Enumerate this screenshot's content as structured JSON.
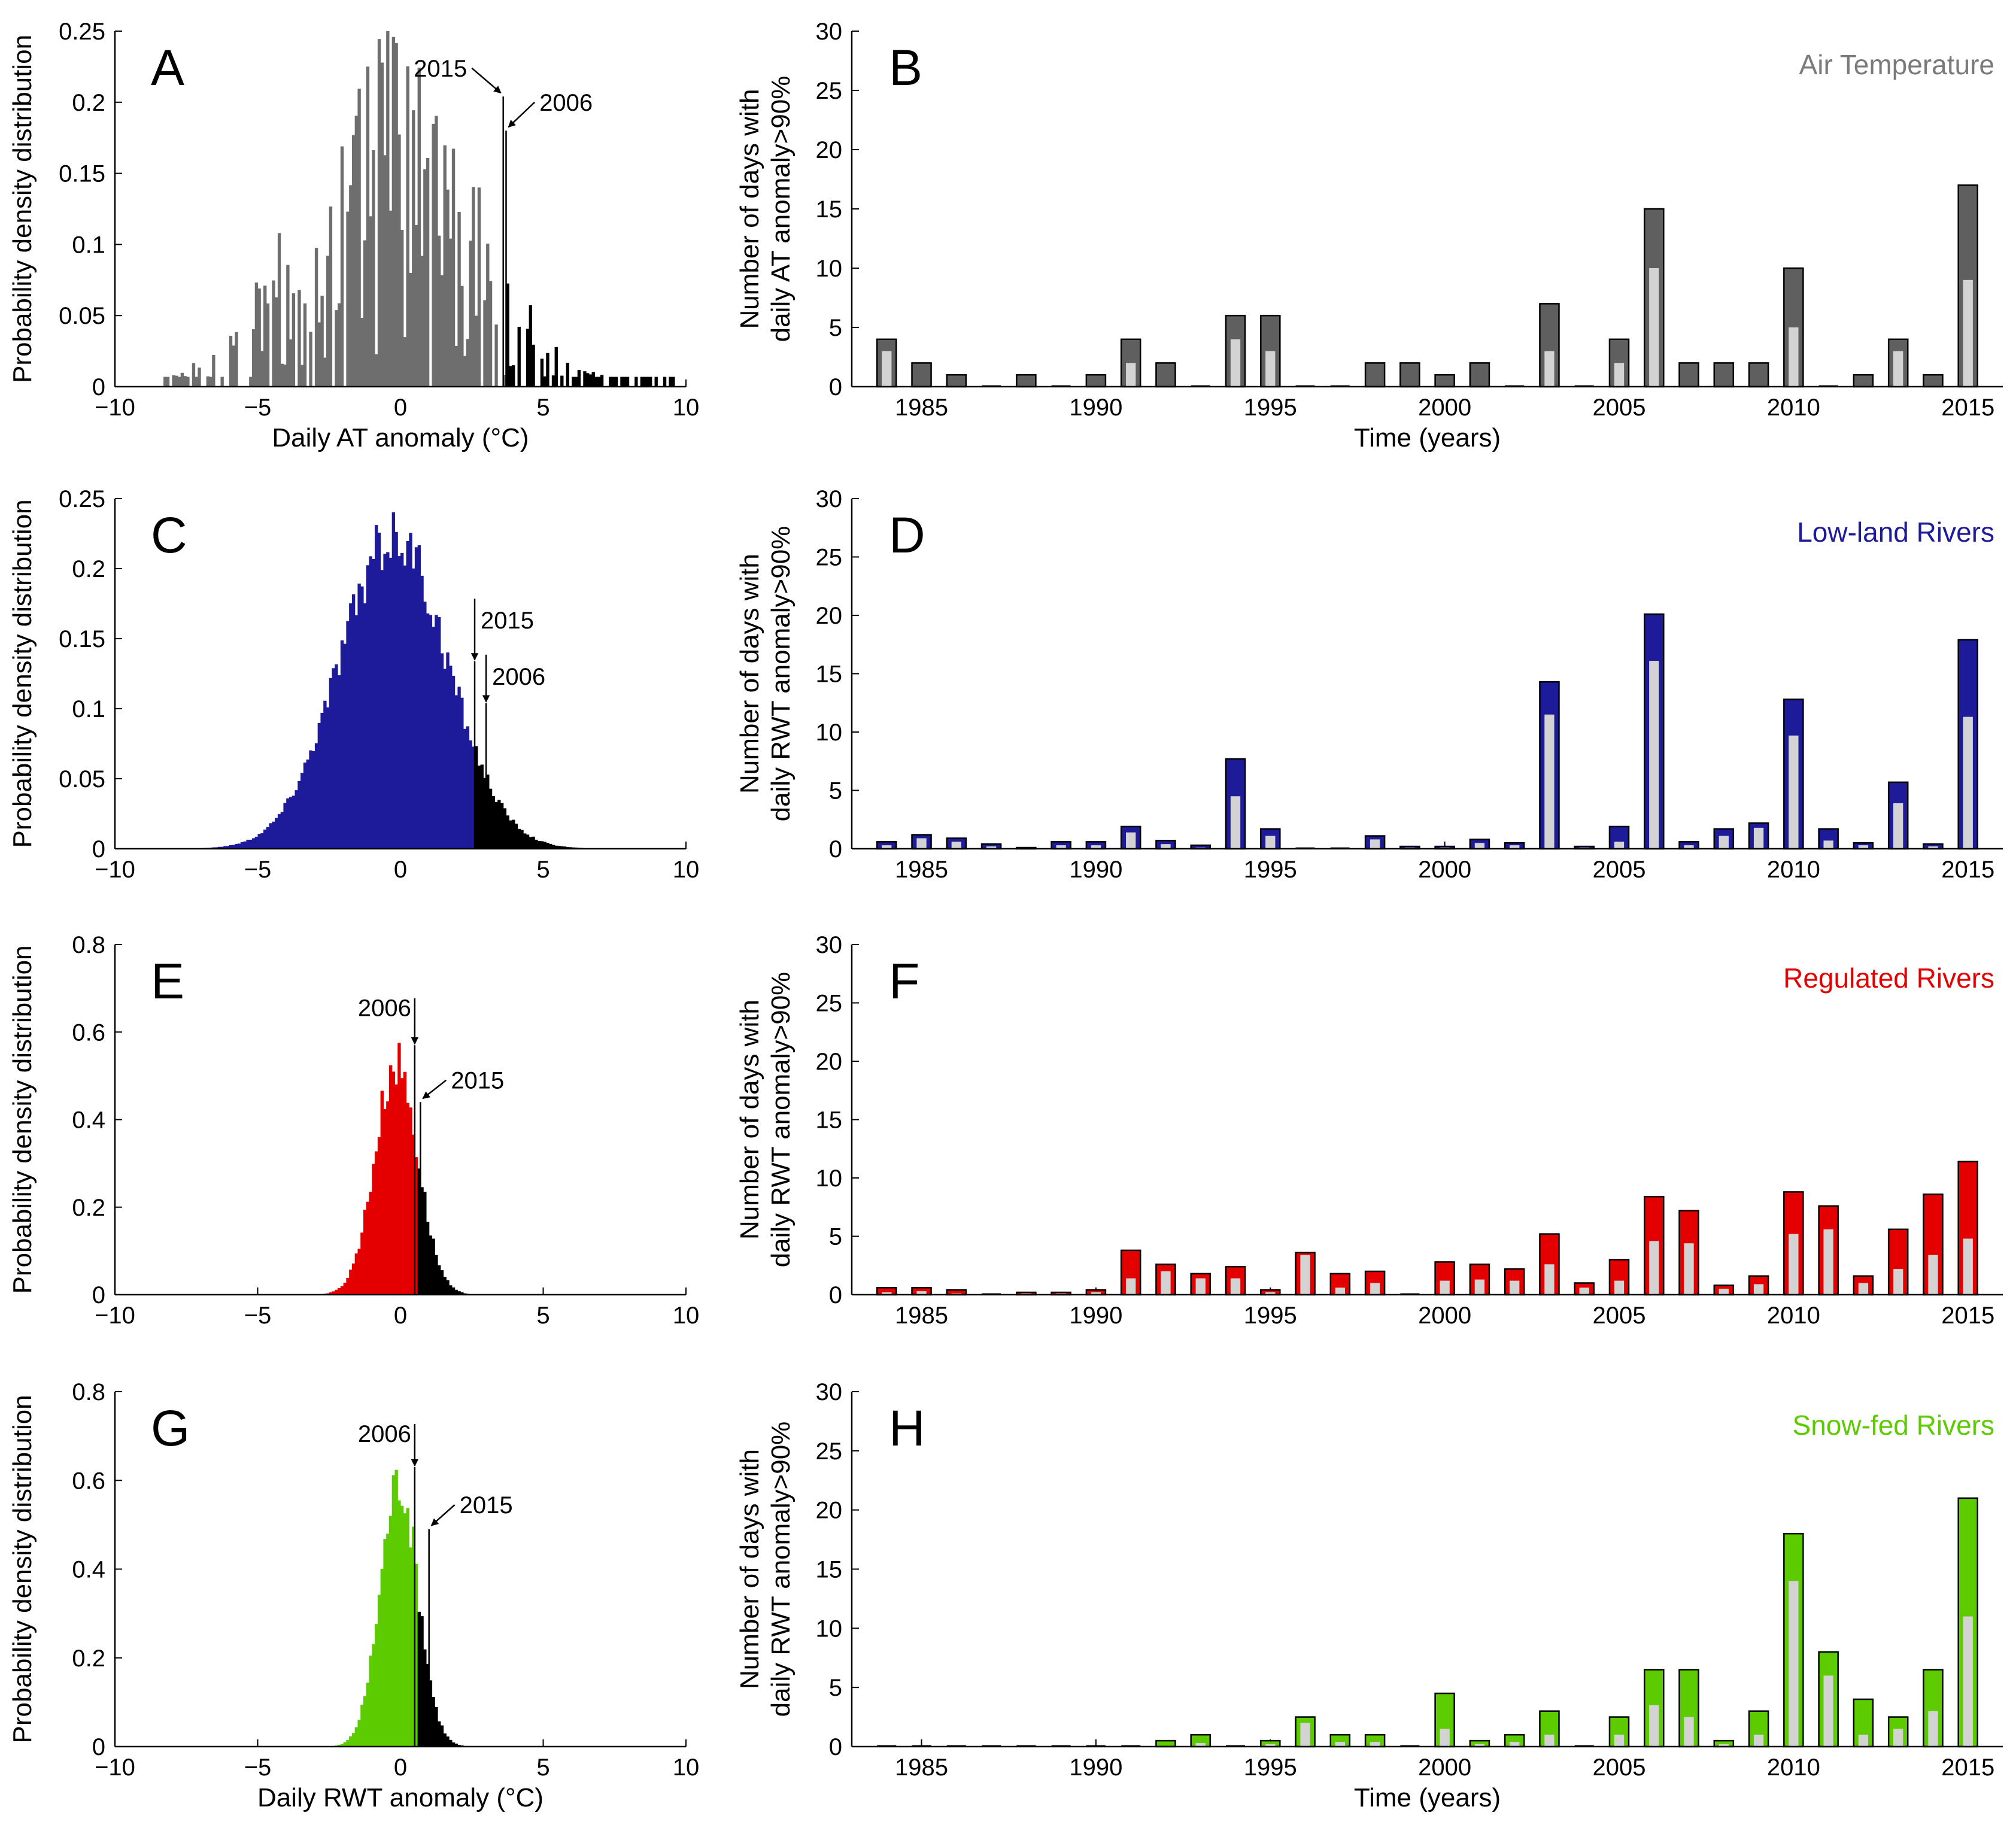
{
  "chart_data": [
    {
      "panel": "A",
      "type": "histogram",
      "xlabel": "Daily AT anomaly (°C)",
      "ylabel": "Probability density distribution",
      "xlim": [
        -10,
        10
      ],
      "ylim": [
        0,
        0.25
      ],
      "xticks": [
        "−10",
        "−5",
        "0",
        "5",
        "10"
      ],
      "yticks": [
        "0",
        "0.05",
        "0.1",
        "0.15",
        "0.2",
        "0.25"
      ],
      "color": "#6e6e6e",
      "tail_color": "#000000",
      "threshold": 3.6,
      "distribution": {
        "mean": -0.5,
        "sd": 2.9,
        "peak": 0.138,
        "min_x": -8.3,
        "max_x": 9.5,
        "binwidth": 0.1,
        "jitter": 0.55,
        "sparsity": 0.45
      },
      "annotations": [
        {
          "label": "2015",
          "x": 3.6,
          "y": 0.204,
          "lx": 2.5,
          "ly": 0.224,
          "arrow": "diagonal",
          "side": "left"
        },
        {
          "label": "2006",
          "x": 3.7,
          "y": 0.18,
          "lx": 4.7,
          "ly": 0.2,
          "arrow": "diagonal",
          "side": "right"
        }
      ]
    },
    {
      "panel": "B",
      "type": "bar",
      "series_title": "Air Temperature",
      "xlabel": "Time (years)",
      "ylabel": [
        "Number of days with",
        "daily AT anomaly>90%"
      ],
      "ylim": [
        0,
        30
      ],
      "xlim": [
        1983,
        2016
      ],
      "xticks": [
        "1985",
        "1990",
        "1995",
        "2000",
        "2005",
        "2010",
        "2015"
      ],
      "yticks": [
        "0",
        "5",
        "10",
        "15",
        "20",
        "25",
        "30"
      ],
      "color": "#5f5f5f",
      "inner_color": "#d3d3d3",
      "title_color": "#7a7a7a",
      "years": [
        1984,
        1985,
        1986,
        1987,
        1988,
        1989,
        1990,
        1991,
        1992,
        1993,
        1994,
        1995,
        1996,
        1997,
        1998,
        1999,
        2000,
        2001,
        2002,
        2003,
        2004,
        2005,
        2006,
        2007,
        2008,
        2009,
        2010,
        2011,
        2012,
        2013,
        2014,
        2015
      ],
      "totals": [
        4,
        2,
        1,
        0,
        1,
        0,
        1,
        4,
        2,
        0,
        6,
        6,
        0,
        0,
        2,
        2,
        1,
        2,
        0,
        7,
        0,
        4,
        15,
        2,
        2,
        2,
        10,
        0,
        1,
        4,
        1,
        17
      ],
      "inner": [
        3,
        0,
        0,
        0,
        0,
        0,
        0,
        2,
        0,
        0,
        4,
        3,
        0,
        0,
        0,
        0,
        0,
        0,
        0,
        3,
        0,
        2,
        10,
        0,
        0,
        0,
        5,
        0,
        0,
        3,
        0,
        9
      ]
    },
    {
      "panel": "C",
      "type": "histogram",
      "xlabel": "",
      "ylabel": "Probability density distribution",
      "xlim": [
        -10,
        10
      ],
      "ylim": [
        0,
        0.25
      ],
      "xticks": [
        "−10",
        "−5",
        "0",
        "5",
        "10"
      ],
      "yticks": [
        "0",
        "0.05",
        "0.1",
        "0.15",
        "0.2",
        "0.25"
      ],
      "color": "#1e1b9a",
      "tail_color": "#000000",
      "threshold": 2.5,
      "distribution": {
        "mean": -0.3,
        "sd": 1.9,
        "peak": 0.222,
        "min_x": -8.8,
        "max_x": 6.8,
        "binwidth": 0.1,
        "jitter": 0.06,
        "sparsity": 0
      },
      "annotations": [
        {
          "label": "2015",
          "x": 2.6,
          "y": 0.134,
          "lx": 2.6,
          "ly": 0.17,
          "arrow": "vertical",
          "side": "right"
        },
        {
          "label": "2006",
          "x": 3.0,
          "y": 0.104,
          "lx": 3.0,
          "ly": 0.13,
          "arrow": "vertical",
          "side": "right"
        }
      ]
    },
    {
      "panel": "D",
      "type": "bar",
      "series_title": "Low-land Rivers",
      "xlabel": "",
      "ylabel": [
        "Number of days with",
        "daily RWT anomaly>90%"
      ],
      "ylim": [
        0,
        30
      ],
      "xlim": [
        1983,
        2016
      ],
      "xticks": [
        "1985",
        "1990",
        "1995",
        "2000",
        "2005",
        "2010",
        "2015"
      ],
      "yticks": [
        "0",
        "5",
        "10",
        "15",
        "20",
        "25",
        "30"
      ],
      "color": "#1e1b9a",
      "inner_color": "#d3d3d3",
      "title_color": "#1e1b9a",
      "years": [
        1984,
        1985,
        1986,
        1987,
        1988,
        1989,
        1990,
        1991,
        1992,
        1993,
        1994,
        1995,
        1996,
        1997,
        1998,
        1999,
        2000,
        2001,
        2002,
        2003,
        2004,
        2005,
        2006,
        2007,
        2008,
        2009,
        2010,
        2011,
        2012,
        2013,
        2014,
        2015
      ],
      "totals": [
        0.6,
        1.2,
        0.9,
        0.4,
        0.1,
        0.6,
        0.6,
        1.9,
        0.7,
        0.3,
        7.7,
        1.7,
        0,
        0,
        1.1,
        0.2,
        0.2,
        0.8,
        0.5,
        14.3,
        0.2,
        1.9,
        20.1,
        0.6,
        1.7,
        2.2,
        12.8,
        1.7,
        0.5,
        5.7,
        0.4,
        17.9
      ],
      "inner": [
        0.3,
        0.9,
        0.6,
        0.2,
        0,
        0.3,
        0.3,
        1.4,
        0.4,
        0.1,
        4.5,
        1.1,
        0,
        0,
        0.8,
        0.1,
        0.1,
        0.5,
        0.3,
        11.5,
        0.1,
        0.6,
        16.1,
        0.3,
        1.1,
        1.8,
        9.7,
        0.7,
        0.3,
        3.9,
        0.2,
        11.3
      ]
    },
    {
      "panel": "E",
      "type": "histogram",
      "xlabel": "",
      "ylabel": "Probability density distribution",
      "xlim": [
        -10,
        10
      ],
      "ylim": [
        0,
        0.8
      ],
      "xticks": [
        "−10",
        "−5",
        "0",
        "5",
        "10"
      ],
      "yticks": [
        "0",
        "0.2",
        "0.4",
        "0.6",
        "0.8"
      ],
      "color": "#e50000",
      "tail_color": "#000000",
      "threshold": 0.6,
      "distribution": {
        "mean": -0.2,
        "sd": 0.75,
        "peak": 0.53,
        "min_x": -3.5,
        "max_x": 3.3,
        "binwidth": 0.1,
        "jitter": 0.07,
        "sparsity": 0
      },
      "annotations": [
        {
          "label": "2006",
          "x": 0.5,
          "y": 0.57,
          "lx": 0.5,
          "ly": 0.65,
          "arrow": "vertical",
          "side": "left"
        },
        {
          "label": "2015",
          "x": 0.7,
          "y": 0.44,
          "lx": 1.6,
          "ly": 0.49,
          "arrow": "diagonal",
          "side": "right"
        }
      ]
    },
    {
      "panel": "F",
      "type": "bar",
      "series_title": "Regulated Rivers",
      "xlabel": "",
      "ylabel": [
        "Number of days with",
        "daily RWT anomaly>90%"
      ],
      "ylim": [
        0,
        30
      ],
      "xlim": [
        1983,
        2016
      ],
      "xticks": [
        "1985",
        "1990",
        "1995",
        "2000",
        "2005",
        "2010",
        "2015"
      ],
      "yticks": [
        "0",
        "5",
        "10",
        "15",
        "20",
        "25",
        "30"
      ],
      "color": "#e50000",
      "inner_color": "#d3d3d3",
      "title_color": "#e50000",
      "years": [
        1984,
        1985,
        1986,
        1987,
        1988,
        1989,
        1990,
        1991,
        1992,
        1993,
        1994,
        1995,
        1996,
        1997,
        1998,
        1999,
        2000,
        2001,
        2002,
        2003,
        2004,
        2005,
        2006,
        2007,
        2008,
        2009,
        2010,
        2011,
        2012,
        2013,
        2014,
        2015
      ],
      "totals": [
        0.6,
        0.6,
        0.4,
        0,
        0.2,
        0.2,
        0.4,
        3.8,
        2.6,
        1.8,
        2.4,
        0.4,
        3.6,
        1.8,
        2,
        0,
        2.8,
        2.6,
        2.2,
        5.2,
        1,
        3,
        8.4,
        7.2,
        0.8,
        1.6,
        8.8,
        7.6,
        1.6,
        5.6,
        8.6,
        11.4
      ],
      "inner": [
        0.2,
        0.3,
        0.1,
        0,
        0.1,
        0.1,
        0.2,
        1.4,
        2,
        1.4,
        1.4,
        0.2,
        3.4,
        0.6,
        1,
        0,
        1.2,
        1.3,
        1.2,
        2.6,
        0.6,
        1.2,
        4.6,
        4.4,
        0.5,
        0.9,
        5.2,
        5.6,
        1,
        2.2,
        3.4,
        4.8
      ]
    },
    {
      "panel": "G",
      "type": "histogram",
      "xlabel": "Daily RWT anomaly (°C)",
      "ylabel": "Probability density distribution",
      "xlim": [
        -10,
        10
      ],
      "ylim": [
        0,
        0.8
      ],
      "xticks": [
        "−10",
        "−5",
        "0",
        "5",
        "10"
      ],
      "yticks": [
        "0",
        "0.2",
        "0.4",
        "0.6",
        "0.8"
      ],
      "color": "#5ccc00",
      "tail_color": "#000000",
      "threshold": 0.6,
      "distribution": {
        "mean": -0.1,
        "sd": 0.66,
        "peak": 0.6,
        "min_x": -2.8,
        "max_x": 2.2,
        "binwidth": 0.1,
        "jitter": 0.07,
        "sparsity": 0
      },
      "annotations": [
        {
          "label": "2006",
          "x": 0.5,
          "y": 0.63,
          "lx": 0.5,
          "ly": 0.7,
          "arrow": "vertical",
          "side": "left"
        },
        {
          "label": "2015",
          "x": 1.0,
          "y": 0.49,
          "lx": 1.9,
          "ly": 0.545,
          "arrow": "diagonal",
          "side": "right"
        }
      ]
    },
    {
      "panel": "H",
      "type": "bar",
      "series_title": "Snow-fed Rivers",
      "xlabel": "Time (years)",
      "ylabel": [
        "Number of days with",
        "daily RWT anomaly>90%"
      ],
      "ylim": [
        0,
        30
      ],
      "xlim": [
        1983,
        2016
      ],
      "xticks": [
        "1985",
        "1990",
        "1995",
        "2000",
        "2005",
        "2010",
        "2015"
      ],
      "yticks": [
        "0",
        "5",
        "10",
        "15",
        "20",
        "25",
        "30"
      ],
      "color": "#5ccc00",
      "inner_color": "#d3d3d3",
      "title_color": "#5ccc00",
      "years": [
        1984,
        1985,
        1986,
        1987,
        1988,
        1989,
        1990,
        1991,
        1992,
        1993,
        1994,
        1995,
        1996,
        1997,
        1998,
        1999,
        2000,
        2001,
        2002,
        2003,
        2004,
        2005,
        2006,
        2007,
        2008,
        2009,
        2010,
        2011,
        2012,
        2013,
        2014,
        2015
      ],
      "totals": [
        0,
        0,
        0,
        0,
        0,
        0,
        0,
        0,
        0.5,
        1,
        0,
        0.5,
        2.5,
        1,
        1,
        0,
        4.5,
        0.5,
        1,
        3,
        0,
        2.5,
        6.5,
        6.5,
        0.5,
        3,
        18,
        8,
        4,
        2.5,
        6.5,
        21
      ],
      "inner": [
        0,
        0,
        0,
        0,
        0,
        0,
        0,
        0,
        0,
        0.3,
        0,
        0.2,
        2,
        0.4,
        0.4,
        0,
        1.5,
        0.2,
        0.4,
        1,
        0,
        1,
        3.5,
        2.5,
        0.2,
        1,
        14,
        6,
        1,
        1.5,
        3,
        11
      ]
    }
  ]
}
